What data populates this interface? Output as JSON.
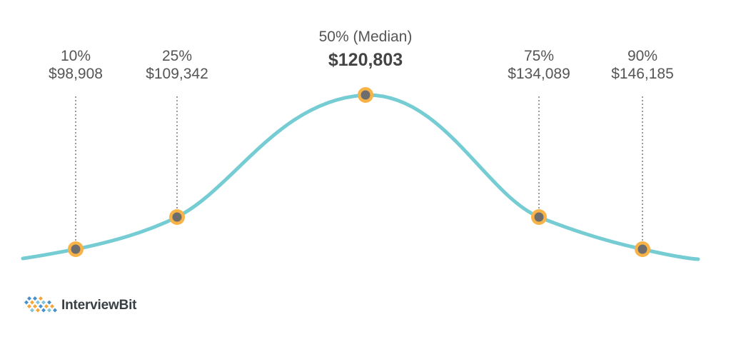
{
  "chart_data": {
    "type": "line",
    "markers": [
      {
        "percentile": "10%",
        "value": "$98,908",
        "median": false
      },
      {
        "percentile": "25%",
        "value": "$109,342",
        "median": false
      },
      {
        "percentile": "50% (Median)",
        "value": "$120,803",
        "median": true
      },
      {
        "percentile": "75%",
        "value": "$134,089",
        "median": false
      },
      {
        "percentile": "90%",
        "value": "$146,185",
        "median": false
      }
    ],
    "values": [
      98908,
      109342,
      120803,
      134089,
      146185
    ],
    "curve_color": "#75cdd3",
    "marker_ring_color": "#f7b347",
    "marker_fill_color": "#6d6d6d",
    "guide_color": "#7a7a7a",
    "grid": false,
    "legend": "none"
  },
  "brand": {
    "name": "InterviewBit",
    "logo_icon": "interviewbit-diamond-logo-icon",
    "logo_colors": [
      "#4a90c8",
      "#f5a63a",
      "#7fc4d8"
    ]
  }
}
